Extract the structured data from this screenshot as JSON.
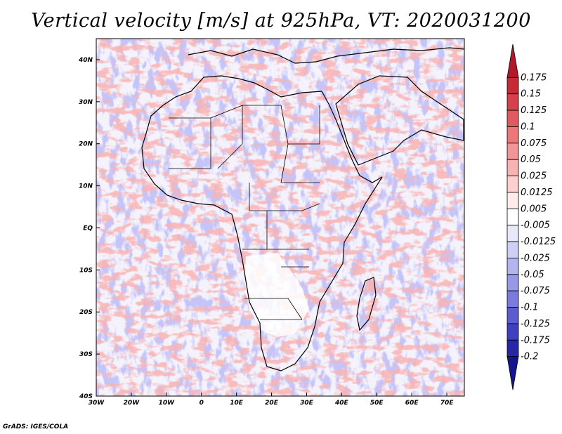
{
  "chart_data": {
    "type": "heatmap",
    "title": "Vertical velocity [m/s] at 925hPa, VT: 2020031200",
    "variable": "Vertical velocity",
    "units": "m/s",
    "level": "925hPa",
    "valid_time": "2020031200",
    "x_axis": {
      "range": [
        -30,
        75
      ],
      "ticks": [
        -30,
        -20,
        -10,
        0,
        10,
        20,
        30,
        40,
        50,
        60,
        70
      ],
      "tick_labels": [
        "30W",
        "20W",
        "10W",
        "0",
        "10E",
        "20E",
        "30E",
        "40E",
        "50E",
        "60E",
        "70E"
      ]
    },
    "y_axis": {
      "range": [
        -40,
        45
      ],
      "ticks": [
        40,
        30,
        20,
        10,
        0,
        -10,
        -20,
        -30,
        -40
      ],
      "tick_labels": [
        "40N",
        "30N",
        "20N",
        "10N",
        "EQ",
        "10S",
        "20S",
        "30S",
        "40S"
      ]
    },
    "colorbar": {
      "levels": [
        "0.175",
        "0.15",
        "0.125",
        "0.1",
        "0.075",
        "0.05",
        "0.025",
        "0.0125",
        "0.005",
        "-0.005",
        "-0.0125",
        "-0.025",
        "-0.05",
        "-0.075",
        "-0.1",
        "-0.125",
        "-0.175",
        "-0.2"
      ],
      "colors": [
        "#b2182b",
        "#c62a35",
        "#d6404a",
        "#e25a60",
        "#ec777a",
        "#f29596",
        "#f7b3b2",
        "#fbd0ce",
        "#fdeceb",
        "#ffffff",
        "#e8e8fb",
        "#cfcff6",
        "#b4b4f0",
        "#9898e8",
        "#7b7bdd",
        "#5d5dd0",
        "#3f3fc0",
        "#2626a8",
        "#141490"
      ]
    }
  },
  "footer": {
    "credit": "GrADS: IGES/COLA"
  }
}
